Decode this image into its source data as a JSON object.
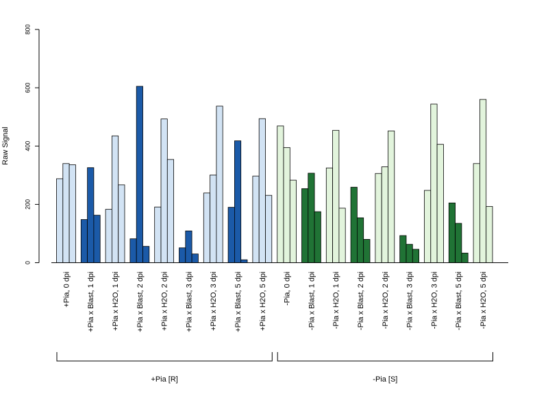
{
  "chart_data": {
    "type": "bar",
    "ylabel": "Raw Signal",
    "ylim": [
      0,
      800
    ],
    "yticks": [
      0,
      200,
      400,
      600,
      800
    ],
    "grid": false,
    "categories": [
      "+Pia, 0 dpi",
      "+Pia x Blast, 1 dpi",
      "+Pia x H2O, 1 dpi",
      "+Pia x Blast, 2 dpi",
      "+Pia x H2O, 2 dpi",
      "+Pia x Blast, 3 dpi",
      "+Pia x H2O, 3 dpi",
      "+Pia x Blast, 5 dpi",
      "+Pia x H2O, 5 dpi",
      "-Pia, 0 dpi",
      "-Pia x Blast, 1 dpi",
      "-Pia x H2O, 1 dpi",
      "-Pia x Blast, 2 dpi",
      "-Pia x H2O, 2 dpi",
      "-Pia x Blast, 3 dpi",
      "-Pia x H2O, 3 dpi",
      "-Pia x Blast, 5 dpi",
      "-Pia x H2O, 5 dpi"
    ],
    "values": [
      [
        288,
        340,
        336
      ],
      [
        148,
        326,
        163
      ],
      [
        183,
        435,
        267
      ],
      [
        82,
        605,
        56
      ],
      [
        191,
        493,
        354
      ],
      [
        51,
        109,
        30
      ],
      [
        239,
        301,
        537
      ],
      [
        190,
        418,
        10
      ],
      [
        297,
        494,
        231
      ],
      [
        469,
        395,
        283
      ],
      [
        254,
        307,
        175
      ],
      [
        325,
        454,
        187
      ],
      [
        259,
        154,
        80
      ],
      [
        306,
        329,
        452
      ],
      [
        93,
        63,
        46
      ],
      [
        248,
        544,
        406
      ],
      [
        205,
        135,
        33
      ],
      [
        340,
        560,
        193
      ]
    ],
    "groups": [
      {
        "label": "+Pia [R]",
        "from": 0,
        "to": 8
      },
      {
        "label": "-Pia [S]",
        "from": 9,
        "to": 17
      }
    ],
    "colors": {
      "pia_light": "#d2e3f4",
      "pia_dark": "#1b5aa8",
      "nopia_light": "#e2f4dc",
      "nopia_dark": "#207335"
    },
    "category_colors": [
      "pia_light",
      "pia_dark",
      "pia_light",
      "pia_dark",
      "pia_light",
      "pia_dark",
      "pia_light",
      "pia_dark",
      "pia_light",
      "nopia_light",
      "nopia_dark",
      "nopia_light",
      "nopia_dark",
      "nopia_light",
      "nopia_dark",
      "nopia_light",
      "nopia_dark",
      "nopia_light"
    ]
  }
}
